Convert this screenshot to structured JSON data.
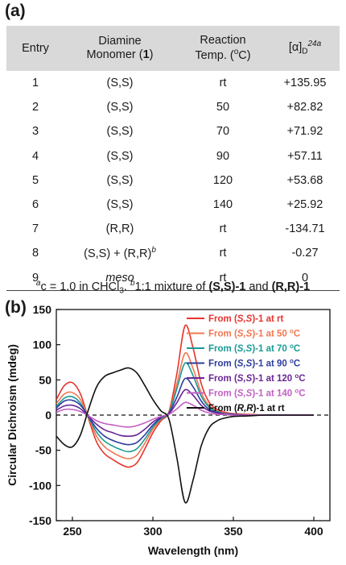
{
  "panel_a_label": "(a)",
  "panel_b_label": "(b)",
  "table": {
    "headers": [
      {
        "main": "Entry"
      },
      {
        "line1": "Diamine",
        "line2": "Monomer (",
        "bold": "1",
        "close": ")"
      },
      {
        "line1": "Reaction",
        "line2": "Temp. (",
        "unit_sup": "o",
        "unit": "C)"
      },
      {
        "main": "[α]",
        "sub": "D",
        "sup": "24a"
      }
    ],
    "rows": [
      {
        "entry": "1",
        "monomer": "(S,S)",
        "temp": "rt",
        "rotation": "+135.95"
      },
      {
        "entry": "2",
        "monomer": "(S,S)",
        "temp": "50",
        "rotation": "+82.82"
      },
      {
        "entry": "3",
        "monomer": "(S,S)",
        "temp": "70",
        "rotation": "+71.92"
      },
      {
        "entry": "4",
        "monomer": "(S,S)",
        "temp": "90",
        "rotation": "+57.11"
      },
      {
        "entry": "5",
        "monomer": "(S,S)",
        "temp": "120",
        "rotation": "+53.68"
      },
      {
        "entry": "6",
        "monomer": "(S,S)",
        "temp": "140",
        "rotation": "+25.92"
      },
      {
        "entry": "7",
        "monomer": "(R,R)",
        "temp": "rt",
        "rotation": "-134.71"
      },
      {
        "entry": "8",
        "monomer": "(S,S) + (R,R)",
        "monomer_sup": "b",
        "temp": "rt",
        "rotation": "-0.27"
      },
      {
        "entry": "9",
        "monomer": "meso",
        "temp": "rt",
        "rotation": "0"
      }
    ],
    "footnote": {
      "a_sup": "a",
      "a_text": "c = 1.0 in CHCl",
      "a_sub": "3",
      "a_end": ". ",
      "b_sup": "b",
      "b_text": "1:1 mixture of ",
      "b_bold1": "(S,S)-1",
      "b_mid": " and ",
      "b_bold2": "(R,R)-1"
    }
  },
  "chart_data": {
    "type": "line",
    "xlabel": "Wavelength (nm)",
    "ylabel": "Circular Dichroism (mdeg)",
    "xlim": [
      240,
      410
    ],
    "ylim": [
      -150,
      150
    ],
    "xticks": [
      250,
      300,
      350,
      400
    ],
    "yticks": [
      -150,
      -100,
      -50,
      0,
      50,
      100,
      150
    ],
    "zero_line": "dashed",
    "legend_position": "top-right",
    "x": [
      240,
      245,
      250,
      255,
      260,
      265,
      270,
      275,
      280,
      285,
      290,
      295,
      300,
      305,
      310,
      315,
      320,
      325,
      330,
      335,
      340,
      345,
      350,
      360,
      370,
      380,
      400
    ],
    "series": [
      {
        "name": "From (S,S)-1 at rt",
        "color": "#e8332d",
        "values": [
          22,
          42,
          46,
          30,
          -5,
          -38,
          -55,
          -63,
          -70,
          -74,
          -68,
          -48,
          -25,
          -8,
          5,
          60,
          127,
          95,
          45,
          18,
          8,
          4,
          2,
          1,
          0,
          0,
          0
        ]
      },
      {
        "name": "From (S,S)-1 at 50 °C",
        "color": "#f07850",
        "values": [
          16,
          30,
          32,
          22,
          -3,
          -30,
          -45,
          -53,
          -59,
          -62,
          -57,
          -40,
          -20,
          -6,
          4,
          45,
          88,
          66,
          32,
          13,
          6,
          3,
          1,
          1,
          0,
          0,
          0
        ]
      },
      {
        "name": "From (S,S)-1 at 70 °C",
        "color": "#1a9a94",
        "values": [
          12,
          24,
          26,
          17,
          -3,
          -24,
          -37,
          -44,
          -49,
          -52,
          -48,
          -34,
          -17,
          -5,
          3,
          38,
          74,
          56,
          27,
          11,
          5,
          2,
          1,
          0,
          0,
          0,
          0
        ]
      },
      {
        "name": "From (S,S)-1 at 90 °C",
        "color": "#2e3d9e",
        "values": [
          10,
          20,
          21,
          14,
          -2,
          -19,
          -30,
          -36,
          -40,
          -42,
          -39,
          -28,
          -14,
          -4,
          3,
          26,
          52,
          40,
          20,
          8,
          4,
          2,
          1,
          0,
          0,
          0,
          0
        ]
      },
      {
        "name": "From (S,S)-1 at 120 °C",
        "color": "#6a2596",
        "values": [
          7,
          13,
          14,
          9,
          -2,
          -13,
          -21,
          -25,
          -29,
          -30,
          -28,
          -20,
          -10,
          -3,
          2,
          18,
          36,
          28,
          14,
          6,
          3,
          1,
          0,
          0,
          0,
          0,
          0
        ]
      },
      {
        "name": "From (S,S)-1 at 140 °C",
        "color": "#c260c4",
        "values": [
          4,
          8,
          8,
          5,
          -1,
          -8,
          -12,
          -14,
          -16,
          -17,
          -15,
          -11,
          -6,
          -2,
          1,
          9,
          18,
          14,
          7,
          3,
          1,
          1,
          0,
          0,
          0,
          0,
          0
        ]
      },
      {
        "name": "From (R,R)-1 at rt",
        "color": "#111111",
        "values": [
          -30,
          -42,
          -45,
          -28,
          8,
          40,
          55,
          60,
          64,
          67,
          60,
          42,
          22,
          6,
          -6,
          -62,
          -124,
          -92,
          -44,
          -18,
          -8,
          -4,
          -2,
          -1,
          0,
          0,
          0
        ]
      }
    ],
    "legend_labels": [
      {
        "pre": "From (",
        "it": "S,S",
        "mid": ")-1 at rt",
        "sup": "",
        "post": ""
      },
      {
        "pre": "From (",
        "it": "S,S",
        "mid": ")-1 at 50 ",
        "sup": "o",
        "post": "C"
      },
      {
        "pre": "From (",
        "it": "S,S",
        "mid": ")-1 at 70 ",
        "sup": "o",
        "post": "C"
      },
      {
        "pre": "From (",
        "it": "S,S",
        "mid": ")-1 at 90 ",
        "sup": "o",
        "post": "C"
      },
      {
        "pre": "From (",
        "it": "S,S",
        "mid": ")-1 at 120 ",
        "sup": "o",
        "post": "C"
      },
      {
        "pre": "From (",
        "it": "S,S",
        "mid": ")-1 at 140 ",
        "sup": "o",
        "post": "C"
      },
      {
        "pre": "From (",
        "it": "R,R",
        "mid": ")-1 at rt",
        "sup": "",
        "post": ""
      }
    ]
  }
}
